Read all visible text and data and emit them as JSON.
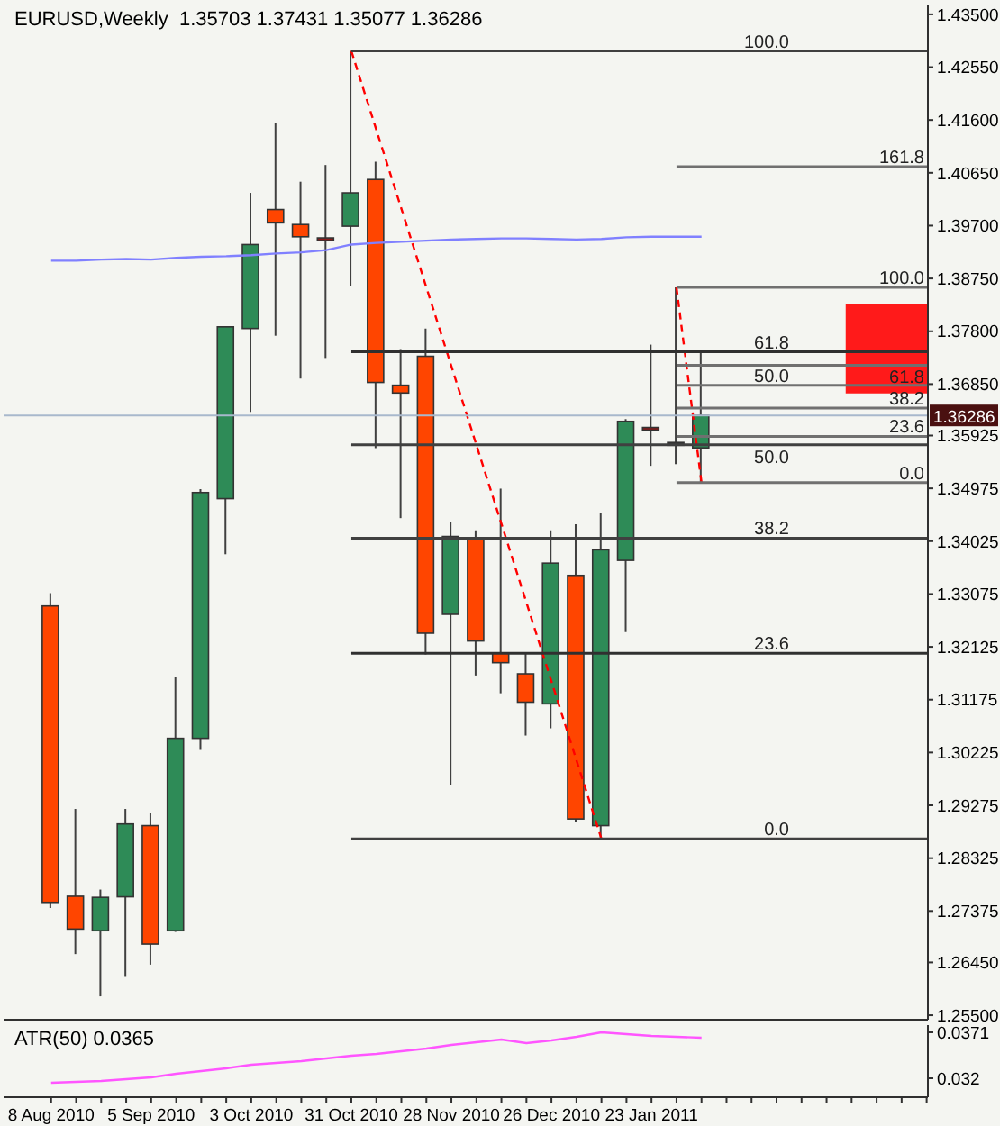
{
  "chart_data": [
    {
      "type": "candlestick",
      "title": "EURUSD,Weekly  1.35703 1.37431 1.35077 1.36286",
      "categories": [
        null,
        null,
        null,
        null,
        null,
        null,
        null,
        null,
        null,
        null,
        null,
        null,
        null,
        null,
        null,
        null,
        null,
        null,
        null,
        null,
        null,
        null,
        null,
        null,
        null,
        null,
        null,
        null,
        null,
        null,
        null,
        null,
        null,
        null,
        null,
        null
      ],
      "ohlc": [
        [
          1.3286,
          1.3309,
          1.2743,
          1.2753
        ],
        [
          1.2764,
          1.2921,
          1.266,
          1.2705
        ],
        [
          1.2702,
          1.2776,
          1.2584,
          1.2762
        ],
        [
          1.2763,
          1.2921,
          1.2619,
          1.2894
        ],
        [
          1.2891,
          1.2914,
          1.2641,
          1.2678
        ],
        [
          1.2702,
          1.3158,
          1.27,
          1.3048
        ],
        [
          1.3048,
          1.3496,
          1.3027,
          1.349
        ],
        [
          1.3479,
          1.3788,
          1.3379,
          1.3788
        ],
        [
          1.3785,
          1.4029,
          1.3635,
          1.3936
        ],
        [
          1.3999,
          1.4155,
          1.3772,
          1.3975
        ],
        [
          1.3972,
          1.4049,
          1.3695,
          1.395
        ],
        [
          1.3948,
          1.4079,
          1.3732,
          1.3945
        ],
        [
          1.3969,
          1.4284,
          1.3861,
          1.4029
        ],
        [
          1.4053,
          1.4085,
          1.357,
          1.3688
        ],
        [
          1.3683,
          1.3748,
          1.3444,
          1.3669
        ],
        [
          1.3735,
          1.3785,
          1.3199,
          1.3237
        ],
        [
          1.3271,
          1.3438,
          1.2964,
          1.3411
        ],
        [
          1.3406,
          1.3422,
          1.3161,
          1.3223
        ],
        [
          1.3201,
          1.3497,
          1.3129,
          1.3184
        ],
        [
          1.3164,
          1.3201,
          1.3053,
          1.3113
        ],
        [
          1.311,
          1.3422,
          1.3066,
          1.3363
        ],
        [
          1.3341,
          1.3433,
          1.2898,
          1.2903
        ],
        [
          1.2891,
          1.3454,
          1.2867,
          1.3387
        ],
        [
          1.3368,
          1.3622,
          1.3239,
          1.3618
        ],
        [
          1.3607,
          1.3756,
          1.3538,
          1.3603
        ],
        [
          1.3575,
          1.3859,
          1.3541,
          1.358
        ],
        [
          1.35703,
          1.37431,
          1.35077,
          1.36286
        ],
        null,
        null,
        null,
        null,
        null,
        null,
        null,
        null,
        null
      ],
      "colors": [
        "#ff4500",
        "#ff4500",
        "#2e8b57",
        "#2e8b57",
        "#ff4500",
        "#2e8b57",
        "#2e8b57",
        "#2e8b57",
        "#2e8b57",
        "#ff4500",
        "#ff4500",
        "#8b1a1a",
        "#2e8b57",
        "#ff4500",
        "#ff4500",
        "#ff4500",
        "#2e8b57",
        "#ff4500",
        "#ff4500",
        "#ff4500",
        "#2e8b57",
        "#ff4500",
        "#2e8b57",
        "#2e8b57",
        "#8b1a1a",
        "#303030",
        "#2e8b57",
        null,
        null,
        null,
        null,
        null,
        null,
        null,
        null,
        null
      ],
      "series": [
        {
          "type": "line",
          "color": "#8080ff",
          "values": [
            1.3907,
            1.3907,
            1.3909,
            1.391,
            1.3909,
            1.3912,
            1.3914,
            1.3915,
            1.3917,
            1.392,
            1.3922,
            1.3926,
            1.3936,
            1.3939,
            1.3941,
            1.3943,
            1.3945,
            1.3946,
            1.3947,
            1.3947,
            1.3946,
            1.3945,
            1.3946,
            1.3949,
            1.395,
            1.395,
            1.395,
            null,
            null,
            null,
            null,
            null,
            null,
            null,
            null,
            null
          ]
        },
        {
          "type": "line",
          "color": "#ff0000",
          "line_style": "dashed",
          "values": [
            null,
            null,
            null,
            null,
            null,
            null,
            null,
            null,
            null,
            null,
            null,
            null,
            1.4284,
            null,
            null,
            null,
            null,
            null,
            null,
            null,
            null,
            null,
            1.2867,
            null,
            null,
            null,
            null,
            null,
            null,
            null,
            null,
            null,
            null,
            null,
            null,
            null
          ]
        },
        {
          "type": "line",
          "color": "#ff0000",
          "line_style": "dashed",
          "values": [
            null,
            null,
            null,
            null,
            null,
            null,
            null,
            null,
            null,
            null,
            null,
            null,
            null,
            null,
            null,
            null,
            null,
            null,
            null,
            null,
            null,
            null,
            null,
            null,
            null,
            1.3859,
            1.3508,
            null,
            null,
            null,
            null,
            null,
            null,
            null,
            null,
            null
          ]
        }
      ],
      "ref_lines": [
        {
          "axis": "y",
          "value": 1.4284,
          "color": "#404040"
        },
        {
          "axis": "y",
          "value": 1.3743,
          "color": "#303030"
        },
        {
          "axis": "y",
          "value": 1.3576,
          "color": "#404040"
        },
        {
          "axis": "y",
          "value": 1.3408,
          "color": "#404040"
        },
        {
          "axis": "y",
          "value": 1.3201,
          "color": "#303030"
        },
        {
          "axis": "y",
          "value": 1.2867,
          "color": "#404040"
        },
        {
          "axis": "y",
          "value": 1.4076,
          "color": "#707070"
        },
        {
          "axis": "y",
          "value": 1.3859,
          "color": "#707070"
        },
        {
          "axis": "y",
          "value": 1.3719,
          "color": "#707070"
        },
        {
          "axis": "y",
          "value": 1.3683,
          "color": "#707070"
        },
        {
          "axis": "y",
          "value": 1.3642,
          "color": "#707070"
        },
        {
          "axis": "y",
          "value": 1.3591,
          "color": "#707070"
        },
        {
          "axis": "y",
          "value": 1.3508,
          "color": "#707070"
        },
        {
          "axis": "y",
          "value": 1.36286,
          "label": "1.36286",
          "color": "#a8b8cc"
        }
      ],
      "bands": [
        {
          "axis": "y",
          "from": 1.367,
          "to": 1.3828,
          "color": "#ff1a1a"
        }
      ],
      "annotations": [
        {
          "text": "100.0",
          "y": 1.4284
        },
        {
          "text": "61.8",
          "y": 1.3743
        },
        {
          "text": "50.0",
          "y": 1.3576
        },
        {
          "text": "38.2",
          "y": 1.3408
        },
        {
          "text": "23.6",
          "y": 1.3201
        },
        {
          "text": "0.0",
          "y": 1.2867
        },
        {
          "text": "161.8",
          "y": 1.4076
        },
        {
          "text": "100.0",
          "y": 1.3859
        },
        {
          "text": "61.8",
          "y": 1.3719
        },
        {
          "text": "50.0",
          "y": 1.3683
        },
        {
          "text": "38.2",
          "y": 1.3642
        },
        {
          "text": "23.6",
          "y": 1.3591
        },
        {
          "text": "0.0",
          "y": 1.3508
        }
      ],
      "ylim": [
        1.2542,
        1.4366
      ],
      "yticks": [
        {
          "value": 1.435,
          "label": "1.43500"
        },
        {
          "value": 1.4255,
          "label": "1.42550"
        },
        {
          "value": 1.416,
          "label": "1.41600"
        },
        {
          "value": 1.4065,
          "label": "1.40650"
        },
        {
          "value": 1.397,
          "label": "1.39700"
        },
        {
          "value": 1.3875,
          "label": "1.38750"
        },
        {
          "value": 1.378,
          "label": "1.37800"
        },
        {
          "value": 1.3685,
          "label": "1.36850"
        },
        {
          "value": 1.35925,
          "label": "1.35925"
        },
        {
          "value": 1.34975,
          "label": "1.34975"
        },
        {
          "value": 1.34025,
          "label": "1.34025"
        },
        {
          "value": 1.33075,
          "label": "1.33075"
        },
        {
          "value": 1.32125,
          "label": "1.32125"
        },
        {
          "value": 1.31175,
          "label": "1.31175"
        },
        {
          "value": 1.30225,
          "label": "1.30225"
        },
        {
          "value": 1.29275,
          "label": "1.29275"
        },
        {
          "value": 1.28325,
          "label": "1.28325"
        },
        {
          "value": 1.27375,
          "label": "1.27375"
        },
        {
          "value": 1.2645,
          "label": "1.26450"
        },
        {
          "value": 1.255,
          "label": "1.25500"
        }
      ],
      "tick_labels": "y"
    },
    {
      "type": "line",
      "title": "ATR(50) 0.0365",
      "categories": [
        "8 Aug 2010",
        null,
        null,
        null,
        "5 Sep 2010",
        null,
        null,
        null,
        "3 Oct 2010",
        null,
        null,
        null,
        "31 Oct 2010",
        null,
        null,
        null,
        "28 Nov 2010",
        null,
        null,
        null,
        "26 Dec 2010",
        null,
        null,
        null,
        "23 Jan 2011",
        null,
        null,
        null,
        null,
        null,
        null,
        null,
        null,
        null,
        null,
        null
      ],
      "series": [
        {
          "color": "#ff55ff",
          "values": [
            0.0315,
            0.0316,
            0.0317,
            0.0319,
            0.0321,
            0.0325,
            0.0328,
            0.0331,
            0.0335,
            0.0337,
            0.0339,
            0.0342,
            0.0345,
            0.0347,
            0.035,
            0.0353,
            0.0357,
            0.036,
            0.0363,
            0.0359,
            0.0362,
            0.0366,
            0.0371,
            0.0369,
            0.0367,
            0.0366,
            0.0365,
            null,
            null,
            null,
            null,
            null,
            null,
            null,
            null,
            null
          ]
        }
      ],
      "ylim": [
        0.0299,
        0.0379
      ],
      "yticks": [
        0.0371,
        0.032
      ]
    }
  ]
}
